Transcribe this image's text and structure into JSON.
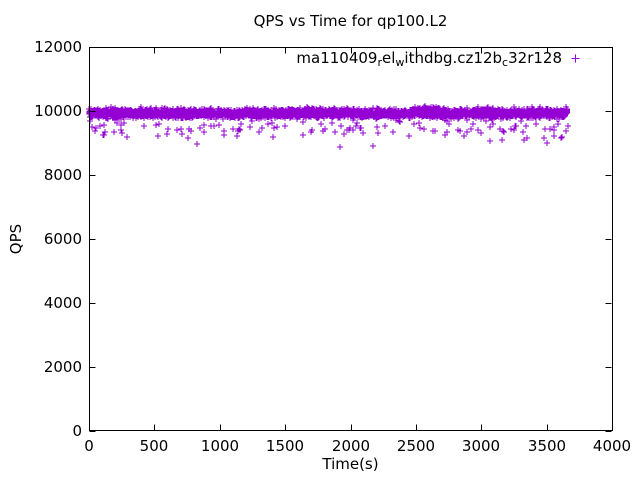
{
  "chart": {
    "title": "QPS vs Time for qp100.L2",
    "xlabel": "Time(s)",
    "ylabel": "QPS"
  },
  "legend": {
    "series_name": "ma110409_rel_withdbg.cz12b_c32r128",
    "display_segments": [
      {
        "text": "ma110409",
        "sub": false
      },
      {
        "text": "r",
        "sub": true
      },
      {
        "text": "el",
        "sub": false
      },
      {
        "text": "w",
        "sub": true
      },
      {
        "text": "ithdbg.cz12b",
        "sub": false
      },
      {
        "text": "c",
        "sub": true
      },
      {
        "text": "32r128",
        "sub": false
      }
    ],
    "marker": "+",
    "marker_color": "#9400D3",
    "position": "top-right-inside"
  },
  "colors": {
    "point": "#9400D3",
    "axis": "#000000",
    "background": "#ffffff",
    "text": "#000000"
  },
  "chart_data": {
    "type": "scatter",
    "title": "QPS vs Time for qp100.L2",
    "xlabel": "Time(s)",
    "ylabel": "QPS",
    "xlim": [
      0,
      4000
    ],
    "ylim": [
      0,
      12000
    ],
    "xticks": [
      0,
      500,
      1000,
      1500,
      2000,
      2500,
      3000,
      3500,
      4000
    ],
    "yticks": [
      0,
      2000,
      4000,
      6000,
      8000,
      10000,
      12000
    ],
    "grid": false,
    "tick_style": "inward-mirrored",
    "marker": "plus",
    "color": "#9400D3",
    "series": [
      {
        "name": "ma110409_rel_withdbg.cz12b_c32r128",
        "summary": {
          "x_start": 0,
          "x_end": 3660,
          "approx_n_points": 3200,
          "band_mean_qps": 9930,
          "band_spread_qps": 70,
          "low_outlier_range": [
            9150,
            9680
          ],
          "deep_outlier_min": 8870,
          "description": "QPS steady near 9900-10000 for entire ~3660s run; sparse low outliers 9150-9680; rare deep dips to ~8900; slight brief rise near t=2600"
        },
        "generator": {
          "seed": 1234,
          "n_band": 3000,
          "band_mean": 9930,
          "band_sd": 70,
          "band_min": 9730,
          "band_max": 10130,
          "n_low": 110,
          "low_mean": 9480,
          "low_sd": 120,
          "low_min": 9150,
          "low_max": 9680,
          "bump": {
            "t0": 2555,
            "t1": 2685,
            "n": 50,
            "mean": 10060,
            "sd": 40
          }
        },
        "explicit_outliers": [
          [
            105,
            9250
          ],
          [
            255,
            9300
          ],
          [
            530,
            9210
          ],
          [
            760,
            9160
          ],
          [
            828,
            8960
          ],
          [
            1135,
            9230
          ],
          [
            1410,
            9200
          ],
          [
            1640,
            9260
          ],
          [
            1923,
            8870
          ],
          [
            2169,
            8900
          ],
          [
            2450,
            9230
          ],
          [
            2720,
            9250
          ],
          [
            2870,
            9210
          ],
          [
            3065,
            9055
          ],
          [
            3160,
            9100
          ],
          [
            3330,
            9090
          ],
          [
            3480,
            9150
          ],
          [
            3500,
            8990
          ],
          [
            3560,
            9220
          ],
          [
            3610,
            9160
          ]
        ]
      }
    ]
  }
}
